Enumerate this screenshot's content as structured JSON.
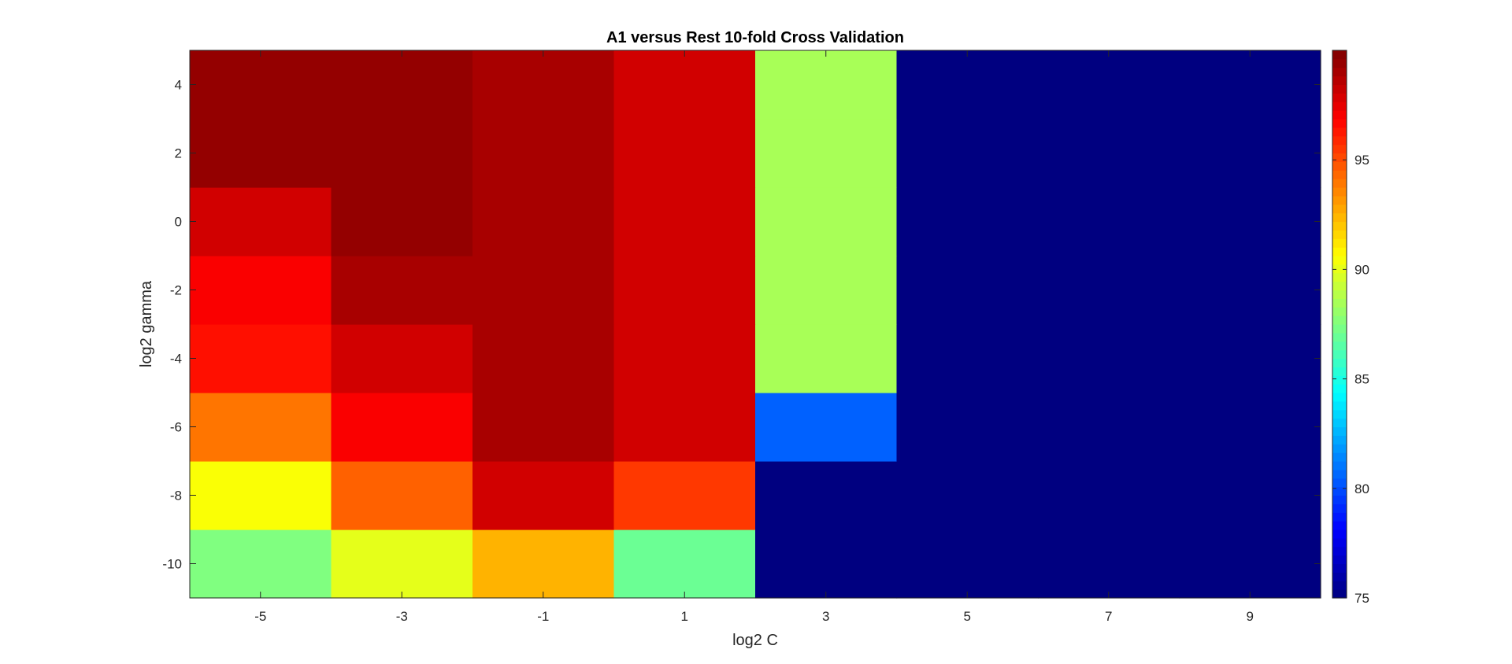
{
  "chart_data": {
    "type": "heatmap",
    "title": "A1 versus Rest 10-fold Cross Validation",
    "xlabel": "log2 C",
    "ylabel": "log2 gamma",
    "x": [
      -5,
      -3,
      -1,
      1,
      3,
      5,
      7,
      9
    ],
    "y": [
      -10,
      -8,
      -6,
      -4,
      -2,
      0,
      2,
      4
    ],
    "x_ticks": [
      "-5",
      "-3",
      "-1",
      "1",
      "3",
      "5",
      "7",
      "9"
    ],
    "y_ticks": [
      "-10",
      "-8",
      "-6",
      "-4",
      "-2",
      "0",
      "2",
      "4"
    ],
    "values": [
      [
        87.5,
        90.0,
        92.5,
        87.0,
        75.0,
        75.0,
        75.0,
        75.0
      ],
      [
        90.5,
        94.5,
        98.0,
        95.5,
        75.0,
        75.0,
        75.0,
        75.0
      ],
      [
        94.0,
        97.0,
        99.0,
        98.0,
        80.5,
        75.0,
        75.0,
        75.0
      ],
      [
        96.5,
        98.0,
        99.0,
        98.0,
        88.5,
        75.0,
        75.0,
        75.0
      ],
      [
        97.0,
        99.0,
        99.0,
        98.0,
        88.5,
        75.0,
        75.0,
        75.0
      ],
      [
        98.0,
        99.5,
        99.0,
        98.0,
        88.5,
        75.0,
        75.0,
        75.0
      ],
      [
        99.5,
        99.5,
        99.0,
        98.0,
        88.5,
        75.0,
        75.0,
        75.0
      ],
      [
        99.5,
        99.5,
        99.0,
        98.0,
        88.5,
        75.0,
        75.0,
        75.0
      ]
    ],
    "colormap": "jet",
    "clim": [
      75,
      100
    ],
    "colorbar_ticks": [
      75,
      80,
      85,
      90,
      95
    ],
    "colorbar_placement": "right",
    "grid": false
  }
}
